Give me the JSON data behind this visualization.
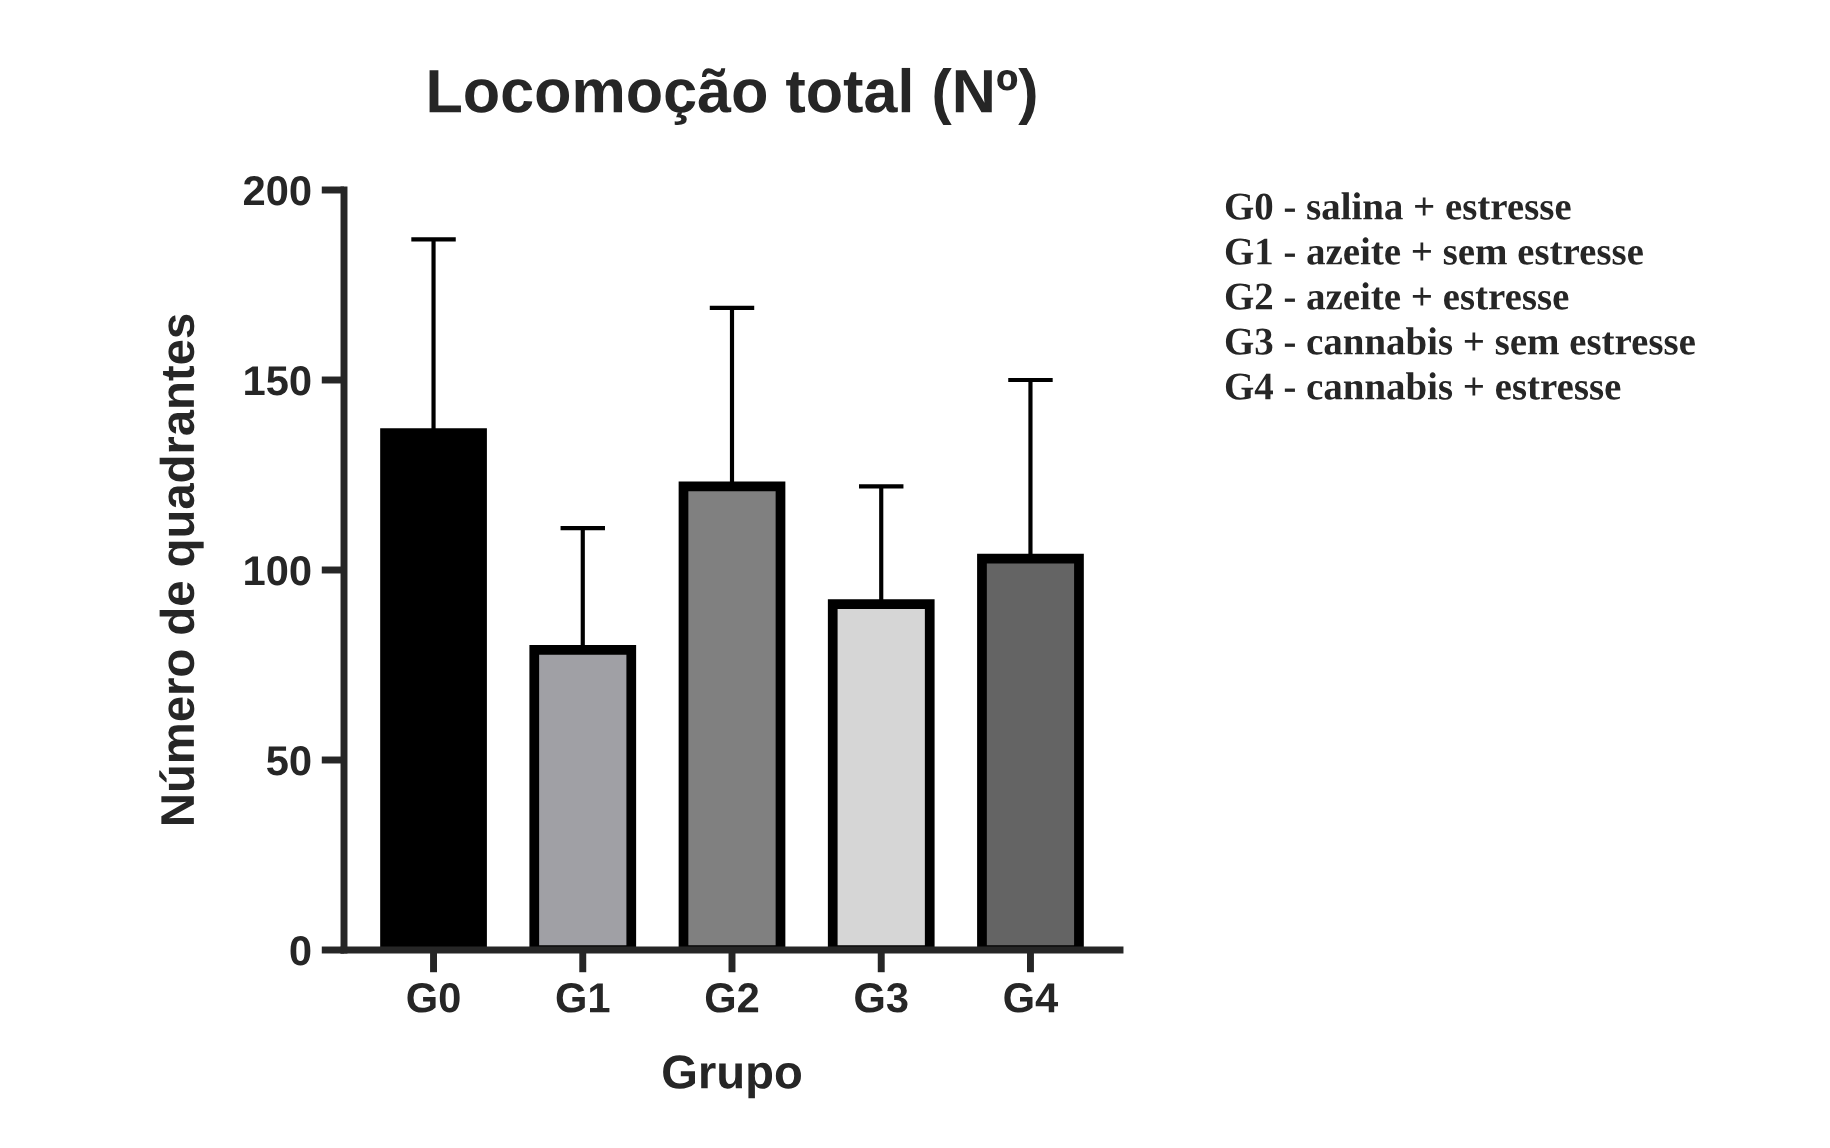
{
  "chart_data": {
    "type": "bar",
    "title": "Locomoção total (Nº)",
    "xlabel": "Grupo",
    "ylabel": "Número de quadrantes",
    "categories": [
      "G0",
      "G1",
      "G2",
      "G3",
      "G4"
    ],
    "values": [
      136,
      79,
      122,
      91,
      103
    ],
    "colors": [
      "#000000",
      "#a0a0a5",
      "#808080",
      "#d6d6d6",
      "#646464"
    ],
    "errors": [
      51,
      32,
      47,
      31,
      47
    ],
    "ylim": [
      0,
      200
    ],
    "yticks": [
      0,
      50,
      100,
      150,
      200
    ],
    "grid": false,
    "legend": false,
    "annotations": [
      "G0 - salina + estresse",
      "G1 - azeite + sem estresse",
      "G2 - azeite + estresse",
      "G3 - cannabis + sem estresse",
      "G4 - cannabis + estresse"
    ]
  }
}
